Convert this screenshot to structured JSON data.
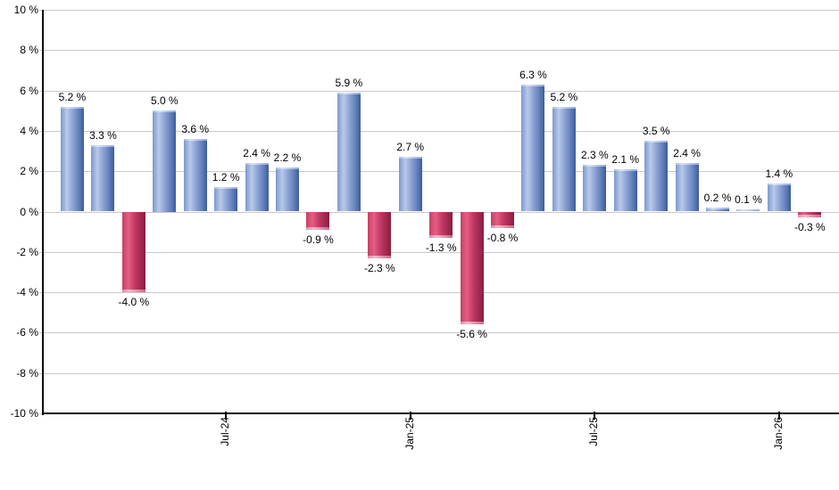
{
  "chart_data": {
    "type": "bar",
    "title": "",
    "unit": "%",
    "values": [
      5.2,
      3.3,
      -4.0,
      5.0,
      3.6,
      1.2,
      2.4,
      2.2,
      -0.9,
      5.9,
      -2.3,
      2.7,
      -1.3,
      -5.6,
      -0.8,
      6.3,
      5.2,
      2.3,
      2.1,
      3.5,
      2.4,
      0.2,
      0.1,
      1.4,
      -0.3
    ],
    "bar_labels": [
      "5.2 %",
      "3.3 %",
      "-4.0 %",
      "5.0 %",
      "3.6 %",
      "1.2 %",
      "2.4 %",
      "2.2 %",
      "-0.9 %",
      "5.9 %",
      "-2.3 %",
      "2.7 %",
      "-1.3 %",
      "-5.6 %",
      "-0.8 %",
      "6.3 %",
      "5.2 %",
      "2.3 %",
      "2.1 %",
      "3.5 %",
      "2.4 %",
      "0.2 %",
      "0.1 %",
      "1.4 %",
      "-0.3 %"
    ],
    "ylim": [
      -10,
      10
    ],
    "y_tick_values": [
      10,
      8,
      6,
      4,
      2,
      0,
      -2,
      -4,
      -6,
      -8,
      -10
    ],
    "y_tick_labels": [
      "10 %",
      "8 %",
      "6 %",
      "4 %",
      "2 %",
      "0 %",
      "-2 %",
      "-4 %",
      "-6 %",
      "-8 %",
      "-10 %"
    ],
    "x_tick_labels": [
      "Jul-24",
      "Jan-25",
      "Jul-25",
      "Jan-26"
    ],
    "x_tick_bar_indices": [
      5,
      11,
      17,
      23
    ],
    "grid": true,
    "legend": "none",
    "colors": {
      "positive_bar": "#7d99cd",
      "positive_bar_highlight": "#bac9e9",
      "positive_bar_dark": "#3d5c9a",
      "negative_bar": "#c04366",
      "negative_bar_highlight": "#e75d83",
      "negative_bar_dark": "#8b1d40",
      "gridline": "#c9c9c9",
      "axis": "#000000",
      "text": "#000000",
      "background": "#ffffff"
    }
  }
}
